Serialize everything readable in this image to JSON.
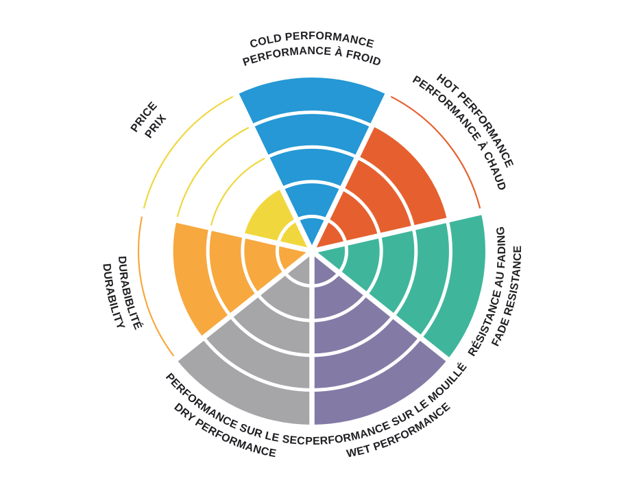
{
  "page": {
    "background": "#FFFFFF",
    "description": "Bilingual (EN/FR) product rating wheel: 7 pie sectors, each filled to a rating out of 5 concentric rings; unachieved rings shown as thin colored outline arcs"
  },
  "chart_data": {
    "type": "pie",
    "variant": "segmented polar rating wheel",
    "rings": 5,
    "max_rating": 5,
    "grid": "white concentric ring dividers and white radial gaps between sectors",
    "legend_position": "curved bilingual labels around the outside of the wheel (English on outer arc, French on inner arc)",
    "text_color": "#1E1E22",
    "gap_color": "#FFFFFF",
    "values": [
      5,
      4,
      5,
      5,
      5,
      4,
      2
    ],
    "sectors": [
      {
        "id": "cold-performance",
        "label_en": "COLD PERFORMANCE",
        "label_fr": "PERFORMANCE À FROID",
        "value": 5,
        "color": "#2598D5",
        "outline_rings": []
      },
      {
        "id": "hot-performance",
        "label_en": "HOT PERFORMANCE",
        "label_fr": "PERFORMANCE À CHAUD",
        "value": 4,
        "color": "#E6602F",
        "outline_rings": [
          5
        ]
      },
      {
        "id": "fade-resistance",
        "label_en": "FADE RESISTANCE",
        "label_fr": "RÉSISTANCE AU FADING",
        "value": 5,
        "color": "#3FB69C",
        "outline_rings": []
      },
      {
        "id": "wet-performance",
        "label_en": "WET PERFORMANCE",
        "label_fr": "PERFORMANCE SUR LE MOUILLÉ",
        "value": 5,
        "color": "#837BA6",
        "outline_rings": []
      },
      {
        "id": "dry-performance",
        "label_en": "DRY PERFORMANCE",
        "label_fr": "PERFORMANCE SUR LE SEC",
        "value": 5,
        "color": "#A6A5A8",
        "outline_rings": []
      },
      {
        "id": "durability",
        "label_en": "DURABILITY",
        "label_fr": "DURABIBLITÉ",
        "value": 4,
        "color": "#F7A83F",
        "outline_rings": [
          5
        ]
      },
      {
        "id": "price",
        "label_en": "PRICE",
        "label_fr": "PRIX",
        "value": 2,
        "color": "#F0D73E",
        "outline_rings": [
          3,
          4,
          5
        ]
      }
    ]
  }
}
